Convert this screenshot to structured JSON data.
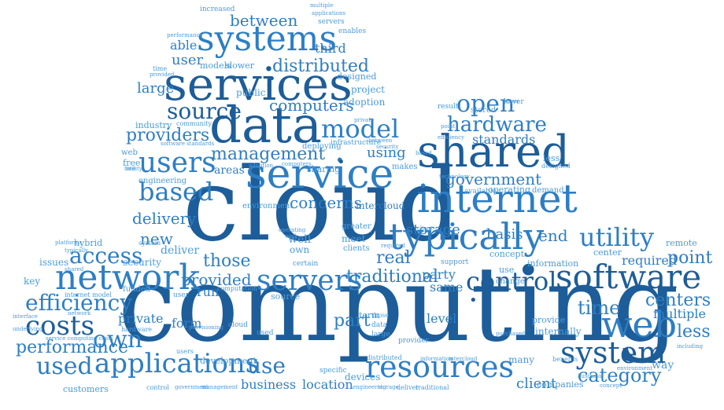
{
  "palette": {
    "dark": "#1d5d99",
    "mid": "#2d7ec4",
    "light": "#4a9bdc"
  },
  "words": {
    "cloud": "cloud",
    "computing": "computing",
    "services": "services",
    "systems": "systems",
    "service": "service",
    "data": "data",
    "shared": "shared",
    "internet": "internet",
    "typically": "typically",
    "network": "network",
    "software": "software",
    "resources": "resources",
    "applications": "applications",
    "web": "web",
    "system": "system",
    "users": "users",
    "model": "model",
    "source": "source",
    "servers": "servers",
    "control": "control",
    "access": "access",
    "efficiency": "efficiency",
    "costs": "costs",
    "based": "based",
    "hardware": "hardware",
    "utility": "utility",
    "management": "management",
    "providers": "providers",
    "government": "government",
    "traditional": "traditional",
    "distributed": "distributed",
    "between": "between",
    "computers": "computers",
    "open": "open",
    "performance": "performance",
    "used": "used",
    "own": "own",
    "use": "use",
    "category": "category",
    "time": "time",
    "centers": "centers",
    "less": "less",
    "new": "new",
    "delivery": "delivery",
    "provided": "provided",
    "those": "those",
    "concerns": "concerns",
    "storage": "storage",
    "real": "real",
    "basis": "basis",
    "end": "end",
    "point": "point",
    "required": "required",
    "multiple": "multiple",
    "business": "business",
    "location": "location",
    "client": "client",
    "part": "part",
    "level": "level",
    "private": "private",
    "form": "form",
    "run": "run",
    "party": "party",
    "same": "same",
    "standards": "standards",
    "large": "large",
    "user": "user",
    "able": "able",
    "third": "third",
    "public": "public",
    "project": "project",
    "adoption": "adoption",
    "designed": "designed",
    "industry": "industry",
    "free": "free",
    "areas": "areas",
    "using": "using",
    "sharing": "sharing",
    "stored": "stored",
    "result": "result",
    "lower": "lower",
    "makes": "makes",
    "deploying": "deploying",
    "infrastructure": "infrastructure",
    "intercloud": "intercloud",
    "environment": "environment",
    "well": "well",
    "meet": "meet",
    "greater": "greater",
    "clients": "clients",
    "deliver": "deliver",
    "security": "security",
    "hybrid": "hybrid",
    "issues": "issues",
    "key": "key",
    "funded": "funded",
    "development": "development",
    "devices": "devices",
    "many": "many",
    "way": "way",
    "remote": "remote",
    "center": "center",
    "internally": "internally",
    "provide": "provide",
    "information": "information",
    "operating": "operating",
    "demand": "demand",
    "available": "available",
    "concept": "concept",
    "companies": "companies",
    "customers": "customers",
    "increased": "increased",
    "enables": "enables",
    "models": "models",
    "slower": "slower",
    "engineering": "engineering",
    "certain": "certain",
    "term": "term",
    "support": "support",
    "change": "change",
    "provider": "provider",
    "specific": "specific",
    "cloud_small": "cloud",
    "computation": "computation",
    "community": "community",
    "performance_small": "performance",
    "multiple_small": "multiple",
    "applications_small": "applications",
    "provisioning": "provisioning",
    "servers_small": "servers",
    "hardware_small": "hardware",
    "software_standards": "software standards",
    "internet_model": "internet  model",
    "service_computing_costs": "service  computing  costs",
    "underlying": "underlying",
    "interface": "interface",
    "platforms": "platforms",
    "typically_small": "typically",
    "purchased": "purchased",
    "including": "including",
    "benefits": "benefits",
    "technology": "technology",
    "private_small": "private",
    "shared_small": "shared",
    "required_small": "required",
    "efficiency_small": "efficiency",
    "designed_small": "designed",
    "opens": "open",
    "control_small": "control",
    "government_small": "government",
    "management_small": "management",
    "engineering_small": "engineering",
    "storage_small": "storage",
    "deliver_small": "deliver",
    "traditional_small": "traditional",
    "location_small": "location",
    "category_small": "category",
    "time_small": "time",
    "provided_small": "provided",
    "users_small": "users",
    "computers_small": "computers",
    "data_small": "data",
    "large_small": "large",
    "those_small": "those",
    "used_small": "used",
    "network_small": "network",
    "operating_small": "operating",
    "adoption_small": "adoption",
    "security_small": "security",
    "point_small": "point",
    "environment_small": "environment",
    "business_small": "business",
    "concept_small": "concept",
    "client_small": "client",
    "source_small": "source",
    "between_small": "between",
    "based_small": "based",
    "use_small": "use",
    "less_small": "less",
    "public_small": "public",
    "user_small": "user",
    "web_small": "web",
    "utility_small": "utility",
    "system_small": "system",
    "lower_small": "lower",
    "information_small": "information",
    "intercloud_small": "intercloud",
    "distributed_small": "distributed",
    "free_small": "free",
    "well_small": "well"
  }
}
